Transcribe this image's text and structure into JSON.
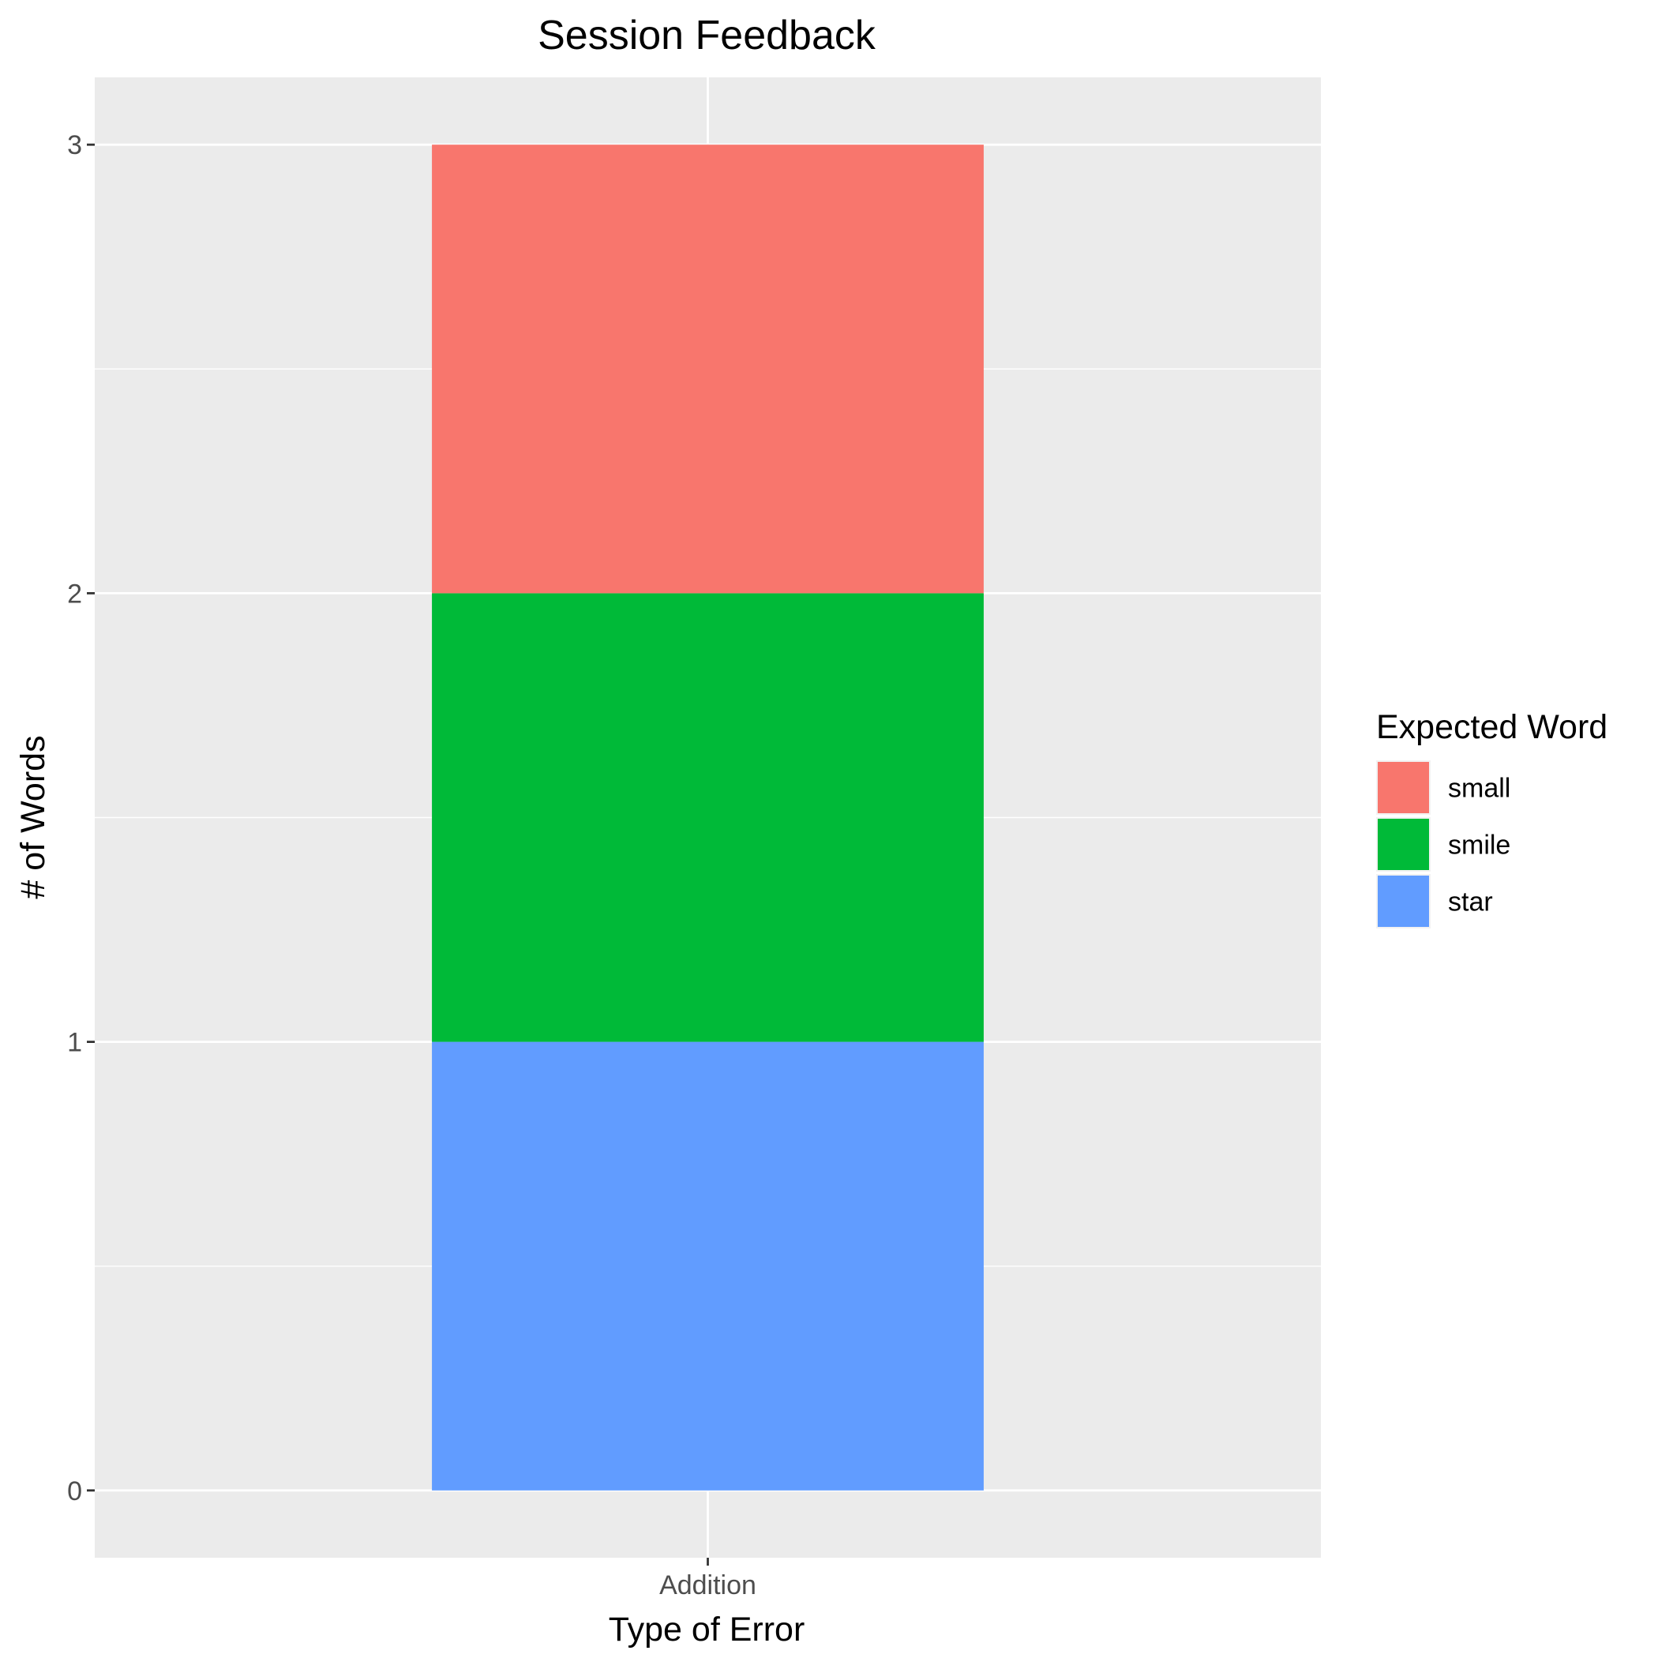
{
  "chart_data": {
    "type": "bar",
    "stacked": true,
    "title": "Session Feedback",
    "xlabel": "Type of Error",
    "ylabel": "# of Words",
    "categories": [
      "Addition"
    ],
    "series": [
      {
        "name": "small",
        "values": [
          1
        ],
        "color": "#F8766D"
      },
      {
        "name": "smile",
        "values": [
          1
        ],
        "color": "#00BA38"
      },
      {
        "name": "star",
        "values": [
          1
        ],
        "color": "#619CFF"
      }
    ],
    "ylim": [
      -0.15,
      3.15
    ],
    "yticks": [
      0,
      1,
      2,
      3
    ],
    "ytick_labels": [
      "0",
      "1",
      "2",
      "3"
    ],
    "grid": true,
    "panel_background": "#EBEBEB",
    "gridline_color": "#FFFFFF",
    "legend": {
      "title": "Expected Word",
      "position": "right"
    }
  }
}
